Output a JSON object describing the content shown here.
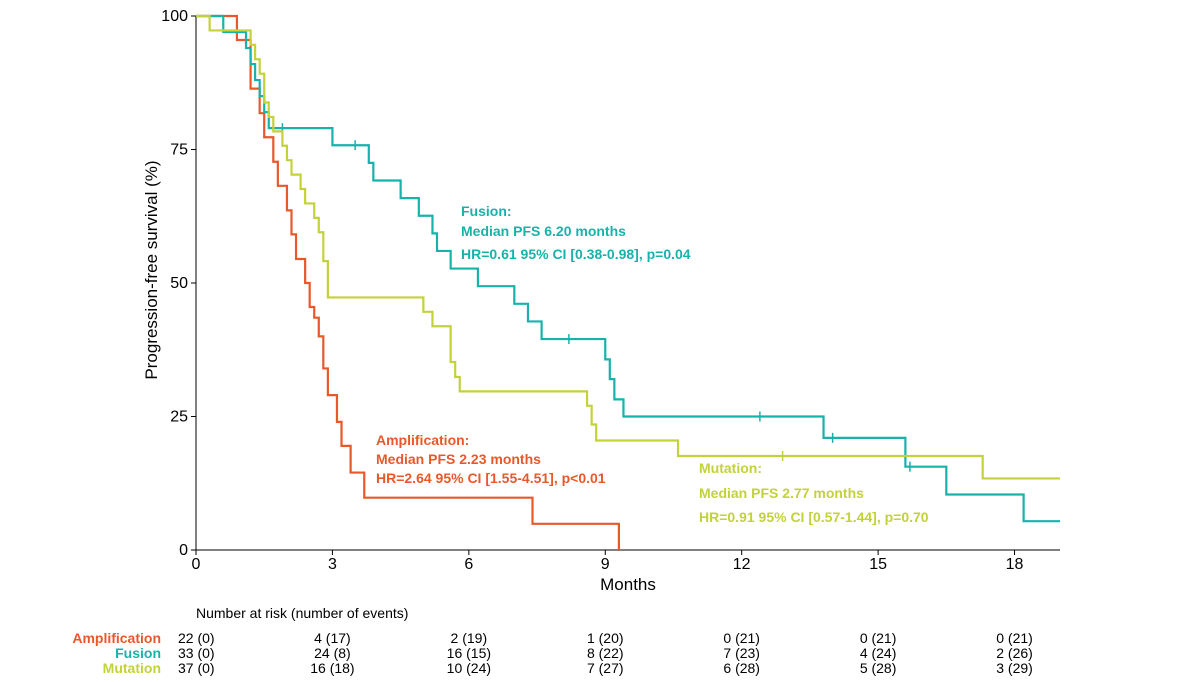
{
  "chart_data": {
    "type": "line",
    "subtype": "kaplan-meier step",
    "xlabel": "Months",
    "ylabel": "Progression-free survival (%)",
    "xlim": [
      0,
      19
    ],
    "ylim": [
      0,
      100
    ],
    "xticks": [
      0,
      3,
      6,
      9,
      12,
      15,
      18
    ],
    "yticks": [
      0,
      25,
      50,
      75,
      100
    ],
    "series": [
      {
        "name": "Amplification",
        "color": "#e8582a",
        "steps": [
          [
            0,
            100
          ],
          [
            0.9,
            95.5
          ],
          [
            1.2,
            86.4
          ],
          [
            1.4,
            81.8
          ],
          [
            1.5,
            77.3
          ],
          [
            1.7,
            72.7
          ],
          [
            1.8,
            68.2
          ],
          [
            2.0,
            63.6
          ],
          [
            2.1,
            59.1
          ],
          [
            2.2,
            54.5
          ],
          [
            2.4,
            50.0
          ],
          [
            2.5,
            45.5
          ],
          [
            2.6,
            43.5
          ],
          [
            2.7,
            40.0
          ],
          [
            2.8,
            34.0
          ],
          [
            2.9,
            29.0
          ],
          [
            3.1,
            24.0
          ],
          [
            3.2,
            19.5
          ],
          [
            3.4,
            14.5
          ],
          [
            3.7,
            9.8
          ],
          [
            7.4,
            4.9
          ],
          [
            9.3,
            0
          ]
        ],
        "censors": []
      },
      {
        "name": "Fusion",
        "color": "#17b3ab",
        "steps": [
          [
            0,
            100
          ],
          [
            0.6,
            97.0
          ],
          [
            1.1,
            94.0
          ],
          [
            1.2,
            91.0
          ],
          [
            1.3,
            88.0
          ],
          [
            1.4,
            85.0
          ],
          [
            1.5,
            82.0
          ],
          [
            1.6,
            79.0
          ],
          [
            3.0,
            75.8
          ],
          [
            3.8,
            72.5
          ],
          [
            3.9,
            69.2
          ],
          [
            4.5,
            65.9
          ],
          [
            4.9,
            62.6
          ],
          [
            5.2,
            59.3
          ],
          [
            5.3,
            56.0
          ],
          [
            5.6,
            52.7
          ],
          [
            6.2,
            49.4
          ],
          [
            7.0,
            46.1
          ],
          [
            7.3,
            42.8
          ],
          [
            7.6,
            39.5
          ],
          [
            9.0,
            35.7
          ],
          [
            9.1,
            32.0
          ],
          [
            9.2,
            28.2
          ],
          [
            9.4,
            25.0
          ],
          [
            13.8,
            21.0
          ],
          [
            15.6,
            15.6
          ],
          [
            16.5,
            10.4
          ],
          [
            18.2,
            5.4
          ]
        ],
        "censors": [
          [
            1.9,
            79.0
          ],
          [
            3.5,
            75.8
          ],
          [
            8.2,
            39.5
          ],
          [
            12.4,
            25.0
          ],
          [
            14.0,
            21.0
          ],
          [
            15.7,
            15.6
          ]
        ]
      },
      {
        "name": "Mutation",
        "color": "#c3d23a",
        "steps": [
          [
            0,
            100
          ],
          [
            0.3,
            97.3
          ],
          [
            1.2,
            94.6
          ],
          [
            1.3,
            91.9
          ],
          [
            1.4,
            89.2
          ],
          [
            1.5,
            83.8
          ],
          [
            1.6,
            81.1
          ],
          [
            1.7,
            78.4
          ],
          [
            1.9,
            75.7
          ],
          [
            2.0,
            73.0
          ],
          [
            2.1,
            70.3
          ],
          [
            2.3,
            67.6
          ],
          [
            2.4,
            64.9
          ],
          [
            2.6,
            62.2
          ],
          [
            2.7,
            59.5
          ],
          [
            2.8,
            54.1
          ],
          [
            2.9,
            47.3
          ],
          [
            5.0,
            44.6
          ],
          [
            5.2,
            41.9
          ],
          [
            5.6,
            35.2
          ],
          [
            5.7,
            32.4
          ],
          [
            5.8,
            29.7
          ],
          [
            8.6,
            27.0
          ],
          [
            8.7,
            23.5
          ],
          [
            8.8,
            20.5
          ],
          [
            10.6,
            17.6
          ],
          [
            17.3,
            13.4
          ]
        ],
        "censors": [
          [
            12.9,
            17.6
          ]
        ]
      }
    ],
    "annotations": {
      "fusion": {
        "title": "Fusion:",
        "median": "Median PFS 6.20 months",
        "hr": "HR=0.61 95% CI [0.38-0.98], p=0.04"
      },
      "amplification": {
        "title": "Amplification:",
        "median": "Median PFS 2.23 months",
        "hr": "HR=2.64 95% CI [1.55-4.51], p<0.01"
      },
      "mutation": {
        "title": "Mutation:",
        "median": "Median PFS 2.77 months",
        "hr": "HR=0.91 95% CI [0.57-1.44], p=0.70"
      }
    }
  },
  "risk_table": {
    "title": "Number at risk (number of events)",
    "rows": [
      {
        "label": "Amplification",
        "color": "#e8582a",
        "values": [
          "22 (0)",
          "4 (17)",
          "2 (19)",
          "1 (20)",
          "0 (21)",
          "0 (21)",
          "0 (21)"
        ]
      },
      {
        "label": "Fusion",
        "color": "#17b3ab",
        "values": [
          "33 (0)",
          "24 (8)",
          "16 (15)",
          "8 (22)",
          "7 (23)",
          "4 (24)",
          "2 (26)"
        ]
      },
      {
        "label": "Mutation",
        "color": "#c3d23a",
        "values": [
          "37 (0)",
          "16 (18)",
          "10 (24)",
          "7 (27)",
          "6 (28)",
          "5 (28)",
          "3 (29)"
        ]
      }
    ]
  }
}
